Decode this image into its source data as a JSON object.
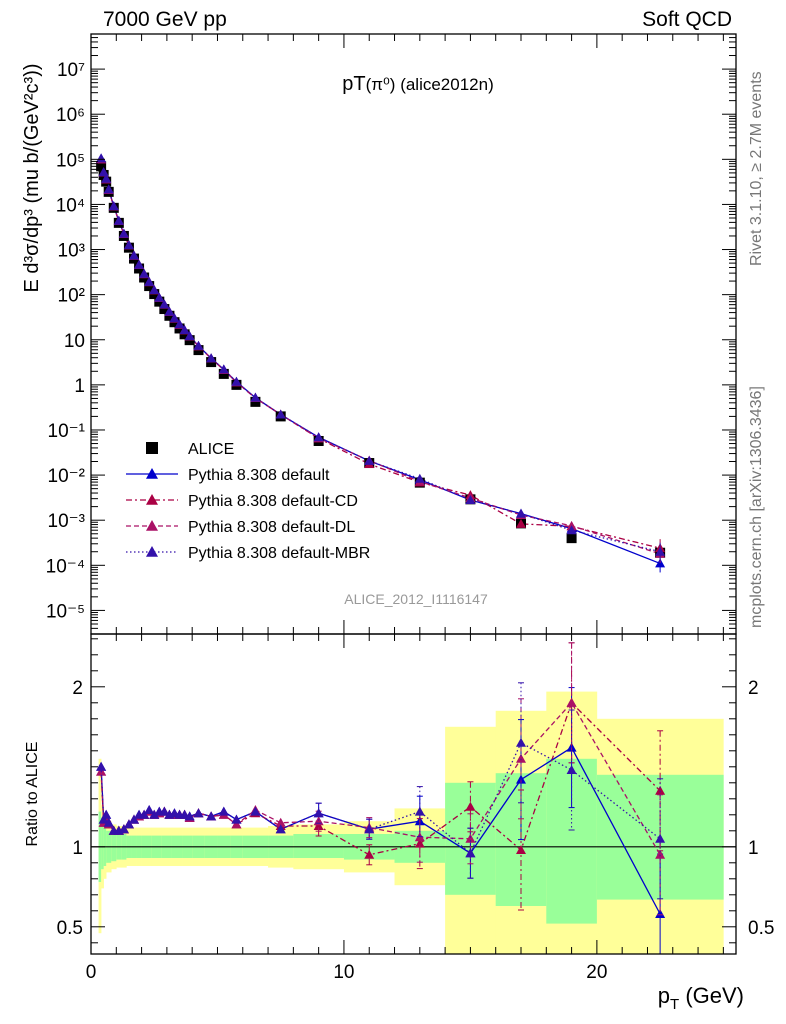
{
  "header": {
    "left": "7000 GeV pp",
    "right": "Soft QCD"
  },
  "side_labels": {
    "rivet": "Rivet 3.1.10, ≥ 2.7M events",
    "mcplots": "mcplots.cern.ch [arXiv:1306.3436]"
  },
  "chart_data": [
    {
      "type": "scatter",
      "panel": "main",
      "title": "pT(π⁰) (alice2012n)",
      "analysis_id": "ALICE_2012_I1116147",
      "ylabel": "E d³σ/dp³ (mu b/(GeV²c³))",
      "xlabel": "p_T (GeV)",
      "yscale": "log",
      "xlim": [
        0,
        25.5
      ],
      "ylim": [
        3e-06,
        60000000.0
      ],
      "legend_position": "bottom-left",
      "x": [
        0.4,
        0.5,
        0.6,
        0.7,
        0.9,
        1.1,
        1.3,
        1.5,
        1.7,
        1.9,
        2.1,
        2.3,
        2.5,
        2.7,
        2.9,
        3.1,
        3.3,
        3.5,
        3.7,
        3.9,
        4.25,
        4.75,
        5.25,
        5.75,
        6.5,
        7.5,
        9.0,
        11.0,
        13.0,
        15.0,
        17.0,
        19.0,
        22.5
      ],
      "series": [
        {
          "name": "ALICE",
          "color": "#000000",
          "marker": "square",
          "values": [
            70000,
            45000,
            32000,
            19000,
            8400,
            3900,
            2000,
            1100,
            630,
            380,
            240,
            155,
            103,
            70,
            48,
            34,
            24.5,
            17.8,
            13.2,
            9.8,
            5.9,
            3.2,
            1.75,
            1.0,
            0.42,
            0.2,
            0.057,
            0.0185,
            0.0068,
            0.0029,
            0.00085,
            0.0004,
            0.00019
          ]
        },
        {
          "name": "Pythia 8.308 default",
          "color": "#0000cc",
          "marker": "triangle",
          "line": "solid",
          "values": [
            105000,
            52000,
            37000,
            21500,
            9200,
            4350,
            2250,
            1250,
            740,
            460,
            290,
            192,
            127,
            86,
            61,
            42,
            30,
            22,
            16.5,
            12,
            7.3,
            3.9,
            2.2,
            1.17,
            0.52,
            0.22,
            0.069,
            0.0206,
            0.0079,
            0.0028,
            0.0014,
            0.00065,
            0.00011
          ]
        },
        {
          "name": "Pythia 8.308 default-CD",
          "color": "#aa0044",
          "marker": "triangle",
          "line": "dashdot",
          "values": [
            100000,
            51000,
            36000,
            21000,
            9000,
            4300,
            2220,
            1240,
            730,
            455,
            285,
            190,
            125,
            85,
            60,
            41.5,
            29.5,
            21.5,
            16.2,
            11.8,
            7.2,
            3.85,
            2.15,
            1.14,
            0.51,
            0.22,
            0.065,
            0.0176,
            0.0069,
            0.0036,
            0.00083,
            0.00073,
            0.00024
          ]
        },
        {
          "name": "Pythia 8.308 default-DL",
          "color": "#aa1166",
          "marker": "triangle",
          "line": "dashed",
          "values": [
            100000,
            51000,
            36000,
            21000,
            9000,
            4300,
            2220,
            1240,
            730,
            455,
            285,
            190,
            125,
            85,
            60,
            41.5,
            29.5,
            21.5,
            16.2,
            11.8,
            7.2,
            3.85,
            2.15,
            1.14,
            0.51,
            0.22,
            0.066,
            0.021,
            0.0072,
            0.0031,
            0.0013,
            0.00075,
            0.00018
          ]
        },
        {
          "name": "Pythia 8.308 default-MBR",
          "color": "#3311aa",
          "marker": "triangle",
          "line": "dotted",
          "values": [
            105000,
            52000,
            37000,
            21500,
            9200,
            4350,
            2250,
            1250,
            740,
            460,
            290,
            192,
            127,
            86,
            61,
            42,
            30,
            22,
            16.5,
            12,
            7.3,
            3.9,
            2.2,
            1.17,
            0.52,
            0.22,
            0.069,
            0.0206,
            0.0083,
            0.0028,
            0.0014,
            0.0006,
            0.0002
          ]
        }
      ]
    },
    {
      "type": "line",
      "panel": "ratio",
      "ylabel": "Ratio to ALICE",
      "xlabel": "p_T (GeV)",
      "xlim": [
        0,
        25.5
      ],
      "ylim": [
        0.33,
        2.33
      ],
      "yticks": [
        0.5,
        1,
        2
      ],
      "xticks": [
        0,
        10,
        20
      ],
      "bands": {
        "edges": [
          0.3,
          0.4,
          0.5,
          0.6,
          0.8,
          1.0,
          1.2,
          1.4,
          1.6,
          1.8,
          2.0,
          2.4,
          2.8,
          3.2,
          3.6,
          4.0,
          4.5,
          5.0,
          5.5,
          6.0,
          7.0,
          8.0,
          10.0,
          12.0,
          14.0,
          16.0,
          18.0,
          20.0,
          25.0
        ],
        "green_low": [
          0.78,
          0.86,
          0.88,
          0.9,
          0.91,
          0.92,
          0.92,
          0.93,
          0.93,
          0.93,
          0.93,
          0.93,
          0.93,
          0.93,
          0.93,
          0.93,
          0.93,
          0.93,
          0.93,
          0.93,
          0.93,
          0.93,
          0.92,
          0.9,
          0.7,
          0.63,
          0.52,
          0.67
        ],
        "green_high": [
          1.22,
          1.14,
          1.12,
          1.1,
          1.09,
          1.08,
          1.08,
          1.07,
          1.07,
          1.07,
          1.07,
          1.07,
          1.07,
          1.07,
          1.07,
          1.07,
          1.07,
          1.07,
          1.07,
          1.07,
          1.07,
          1.08,
          1.08,
          1.1,
          1.4,
          1.46,
          1.55,
          1.45
        ],
        "yellow_low": [
          0.46,
          0.74,
          0.8,
          0.84,
          0.86,
          0.87,
          0.87,
          0.88,
          0.88,
          0.88,
          0.88,
          0.88,
          0.88,
          0.88,
          0.88,
          0.88,
          0.88,
          0.88,
          0.88,
          0.88,
          0.87,
          0.86,
          0.84,
          0.76,
          0.33,
          0.33,
          0.33,
          0.33
        ],
        "yellow_high": [
          1.55,
          1.26,
          1.2,
          1.16,
          1.14,
          1.13,
          1.13,
          1.12,
          1.12,
          1.12,
          1.12,
          1.12,
          1.12,
          1.12,
          1.12,
          1.12,
          1.12,
          1.12,
          1.12,
          1.12,
          1.13,
          1.14,
          1.16,
          1.24,
          1.75,
          1.85,
          1.97,
          1.8
        ]
      },
      "x": [
        0.4,
        0.5,
        0.6,
        0.7,
        0.9,
        1.1,
        1.3,
        1.5,
        1.7,
        1.9,
        2.1,
        2.3,
        2.5,
        2.7,
        2.9,
        3.1,
        3.3,
        3.5,
        3.7,
        3.9,
        4.25,
        4.75,
        5.25,
        5.75,
        6.5,
        7.5,
        9.0,
        11.0,
        13.0,
        15.0,
        17.0,
        19.0,
        22.5
      ],
      "series": [
        {
          "name": "Pythia 8.308 default",
          "color": "#0000cc",
          "line": "solid",
          "values": [
            1.5,
            1.17,
            1.2,
            1.15,
            1.1,
            1.1,
            1.11,
            1.14,
            1.17,
            1.2,
            1.2,
            1.23,
            1.2,
            1.22,
            1.22,
            1.2,
            1.21,
            1.2,
            1.2,
            1.19,
            1.21,
            1.19,
            1.22,
            1.17,
            1.22,
            1.11,
            1.21,
            1.11,
            1.16,
            0.96,
            1.42,
            1.62,
            0.58
          ]
        },
        {
          "name": "Pythia 8.308 default-CD",
          "color": "#aa0044",
          "line": "dashdot",
          "values": [
            1.47,
            1.15,
            1.18,
            1.14,
            1.1,
            1.1,
            1.11,
            1.14,
            1.17,
            1.19,
            1.2,
            1.22,
            1.2,
            1.21,
            1.22,
            1.2,
            1.2,
            1.2,
            1.2,
            1.18,
            1.21,
            1.19,
            1.2,
            1.14,
            1.21,
            1.13,
            1.13,
            0.95,
            1.02,
            1.25,
            0.98,
            1.9,
            1.35
          ]
        },
        {
          "name": "Pythia 8.308 default-DL",
          "color": "#aa1166",
          "line": "dashed",
          "values": [
            1.47,
            1.15,
            1.18,
            1.14,
            1.1,
            1.1,
            1.11,
            1.14,
            1.17,
            1.19,
            1.2,
            1.22,
            1.2,
            1.21,
            1.22,
            1.2,
            1.2,
            1.2,
            1.2,
            1.18,
            1.21,
            1.19,
            1.2,
            1.14,
            1.23,
            1.15,
            1.16,
            1.12,
            1.06,
            1.05,
            1.55,
            1.9,
            0.95
          ]
        },
        {
          "name": "Pythia 8.308 default-MBR",
          "color": "#3311aa",
          "line": "dotted",
          "values": [
            1.5,
            1.17,
            1.2,
            1.15,
            1.1,
            1.1,
            1.11,
            1.14,
            1.17,
            1.2,
            1.2,
            1.23,
            1.2,
            1.22,
            1.22,
            1.2,
            1.21,
            1.2,
            1.2,
            1.19,
            1.21,
            1.19,
            1.22,
            1.17,
            1.22,
            1.11,
            1.21,
            1.11,
            1.22,
            0.96,
            1.65,
            1.48,
            1.05
          ]
        }
      ]
    }
  ]
}
